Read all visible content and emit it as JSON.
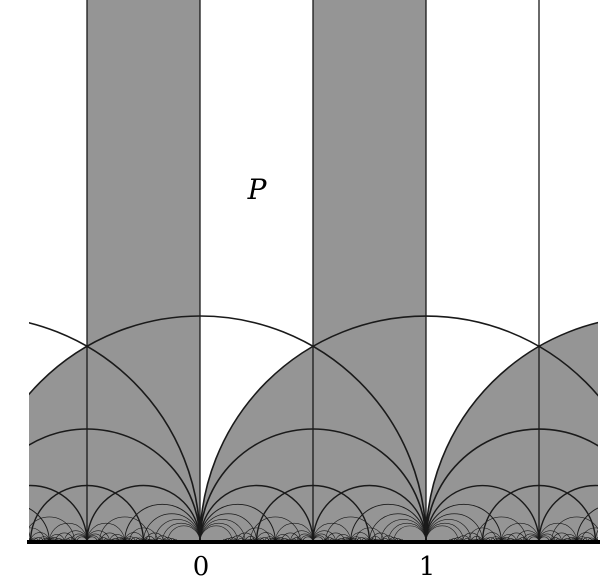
{
  "figure": {
    "labels": {
      "region": "P",
      "tick_zero": "0",
      "tick_one": "1"
    },
    "colors": {
      "shade": "#959595",
      "ink": "#1a1a1a",
      "paper": "#ffffff"
    }
  }
}
